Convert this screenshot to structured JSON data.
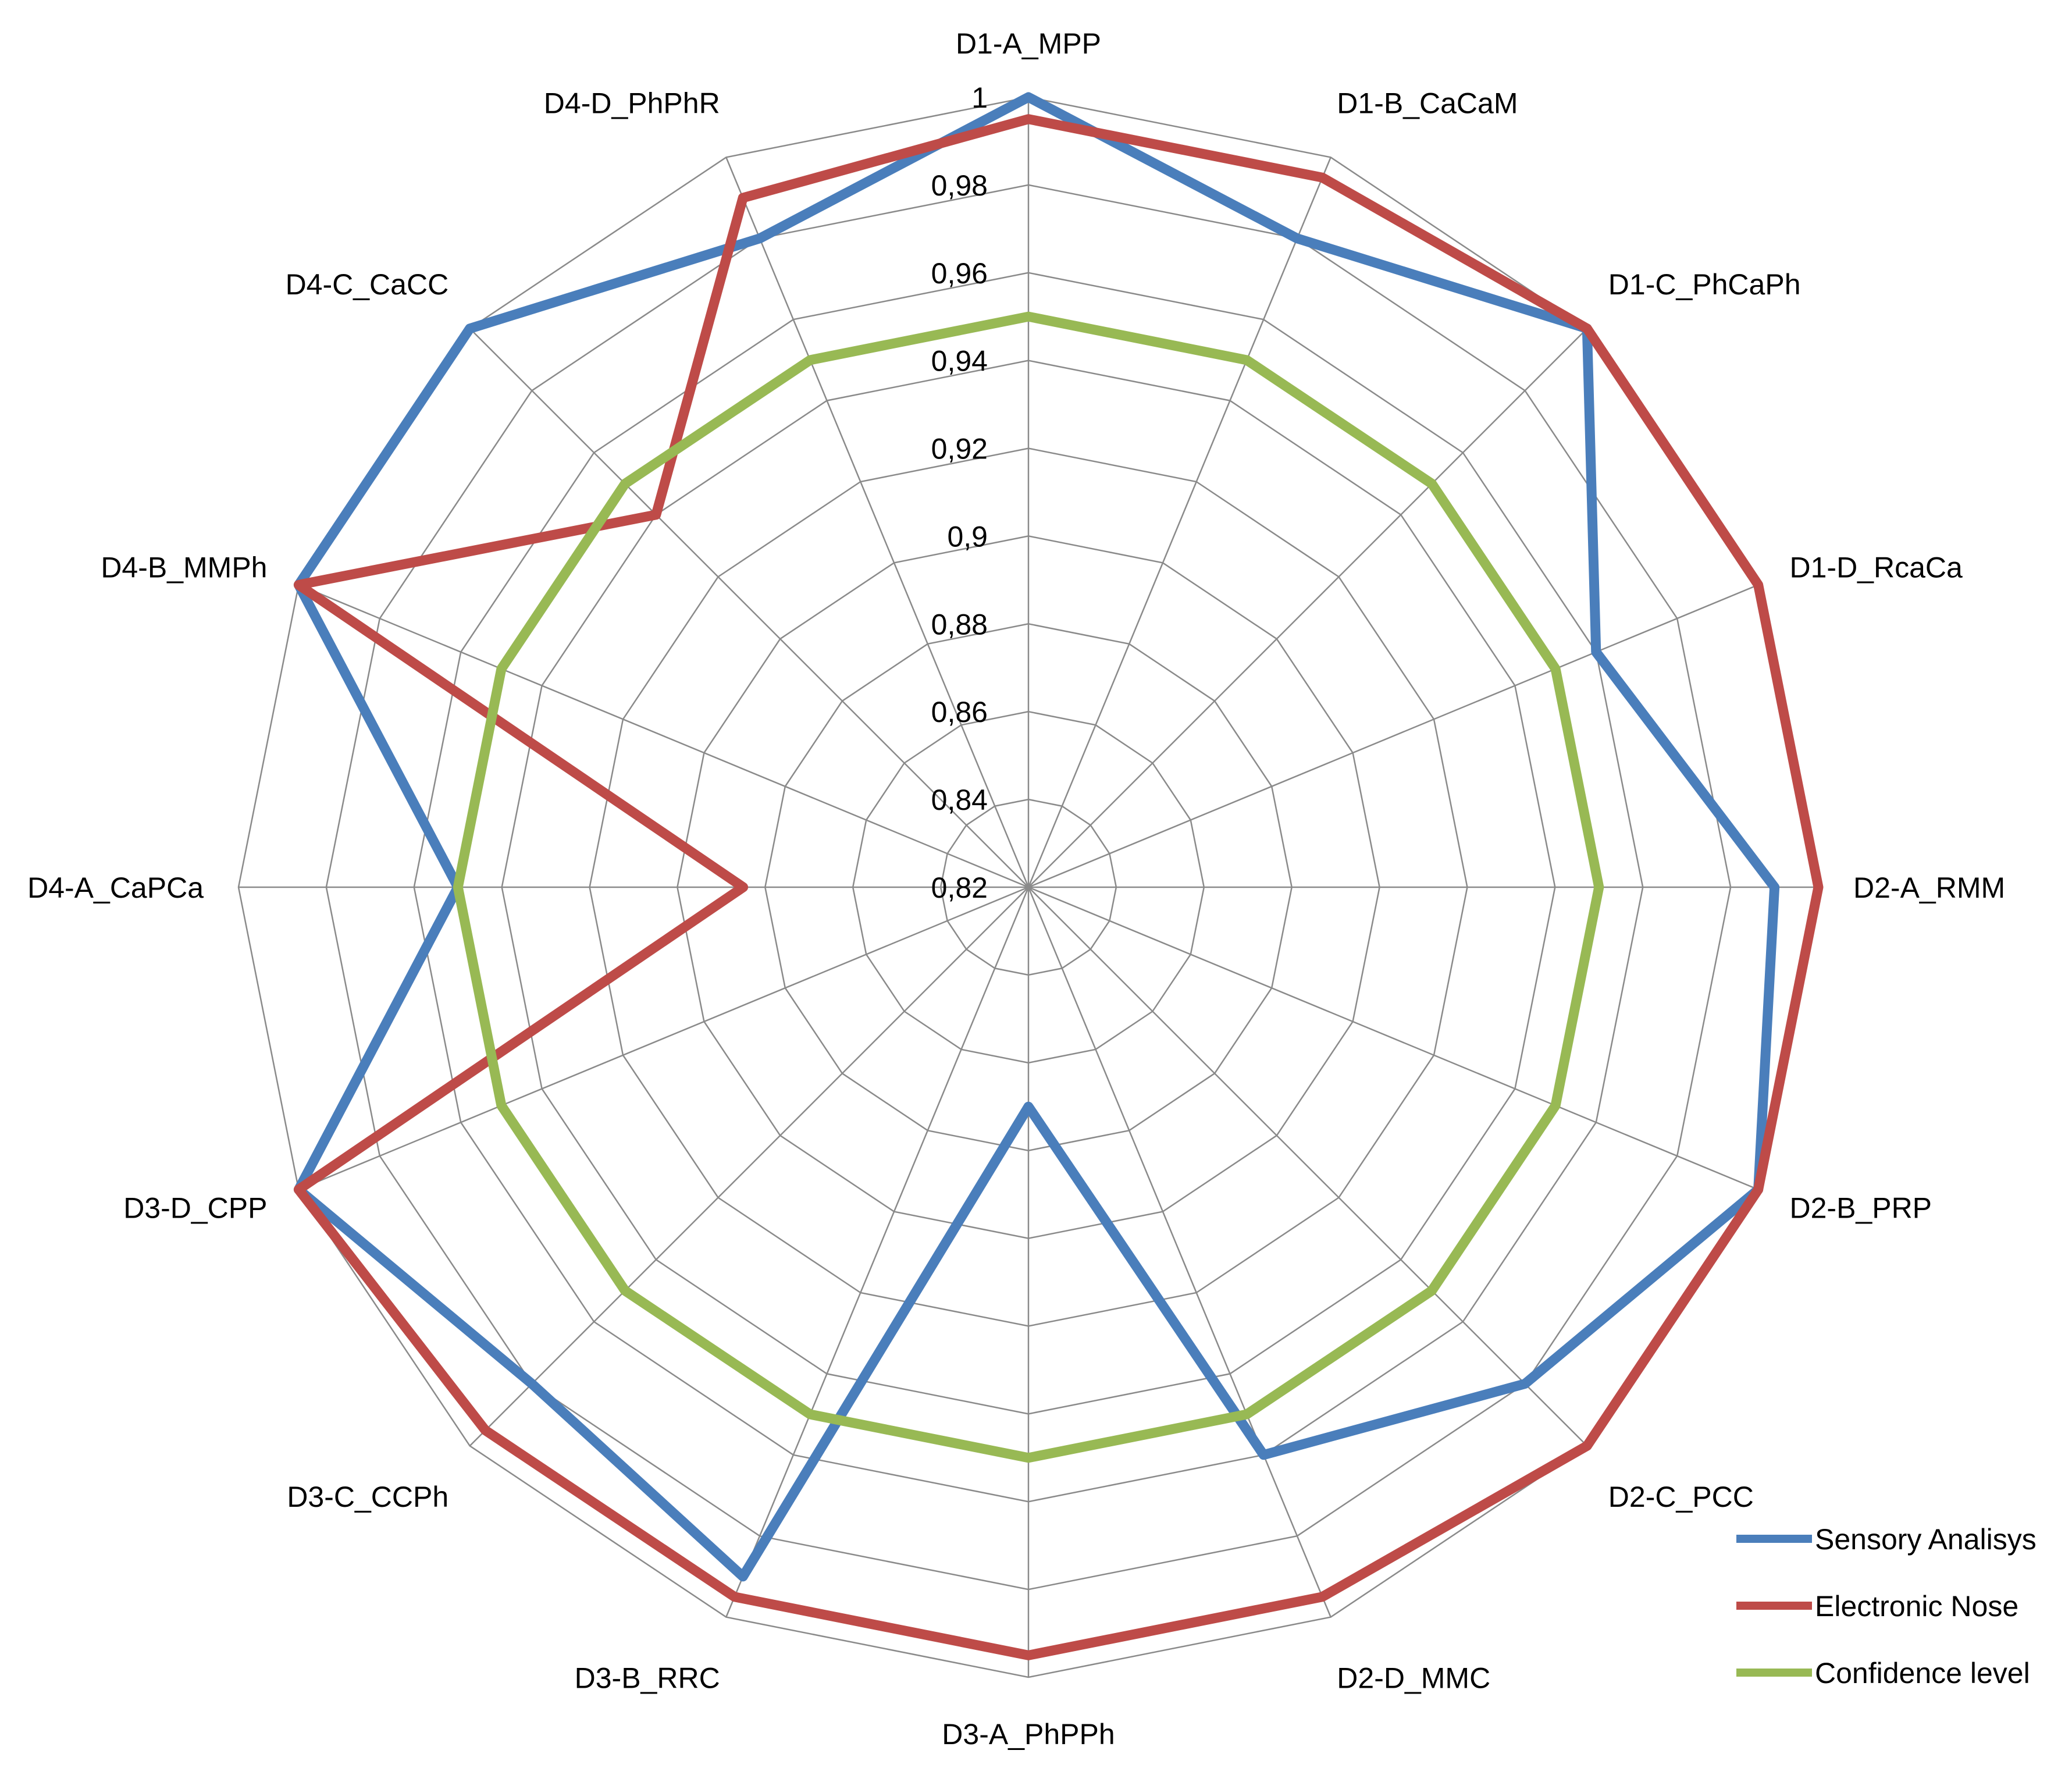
{
  "chart_data": {
    "type": "radar",
    "title": "",
    "categories": [
      "D1-A_MPP",
      "D1-B_CaCaM",
      "D1-C_PhCaPh",
      "D1-D_RcaCa",
      "D2-A_RMM",
      "D2-B_PRP",
      "D2-C_PCC",
      "D2-D_MMC",
      "D3-A_PhPPh",
      "D3-B_RRC",
      "D3-C_CCPh",
      "D3-D_CPP",
      "D4-A_CaPCa",
      "D4-B_MMPh",
      "D4-C_CaCC",
      "D4-D_PhPhR"
    ],
    "rlim": [
      0.82,
      1.0
    ],
    "ticks": [
      0.82,
      0.84,
      0.86,
      0.88,
      0.9,
      0.92,
      0.94,
      0.96,
      0.98,
      1
    ],
    "tick_labels": [
      "0,82",
      "0,84",
      "0,86",
      "0,88",
      "0,9",
      "0,92",
      "0,94",
      "0,96",
      "0,98",
      "1"
    ],
    "grid": true,
    "legend_position": "bottom-right",
    "series": [
      {
        "name": "Sensory Analisys",
        "color": "#4a7ebb",
        "values": [
          1.0,
          0.98,
          1.0,
          0.96,
          0.99,
          1.0,
          0.98,
          0.96,
          0.87,
          0.99,
          0.98,
          1.0,
          0.95,
          1.0,
          1.0,
          0.98
        ]
      },
      {
        "name": "Electronic Nose",
        "color": "#be4b48",
        "values": [
          0.995,
          0.995,
          1.0,
          1.0,
          1.0,
          1.0,
          1.0,
          0.995,
          0.995,
          0.995,
          0.995,
          1.0,
          0.885,
          1.0,
          0.94,
          0.99
        ]
      },
      {
        "name": "Confidence level",
        "color": "#98b954",
        "values": [
          0.95,
          0.95,
          0.95,
          0.95,
          0.95,
          0.95,
          0.95,
          0.95,
          0.95,
          0.95,
          0.95,
          0.95,
          0.95,
          0.95,
          0.95,
          0.95
        ]
      }
    ]
  }
}
